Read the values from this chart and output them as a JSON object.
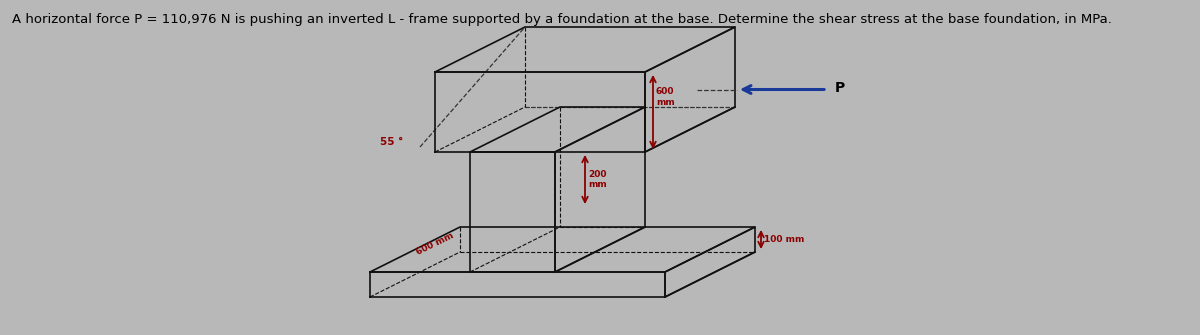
{
  "title": "A horizontal force P = 110,976 N is pushing an inverted L - frame supported by a foundation at the base. Determine the shear stress at the base foundation, in MPa.",
  "title_fontsize": 9.5,
  "bg_color": "#b8b8b8",
  "line_color": "#111111",
  "dim_color": "#8b0000",
  "arrow_color": "#1a3a9a",
  "dashed_color": "#333333",
  "P_label": "P",
  "dim_600_top": "600\nmm",
  "dim_200": "200\nmm",
  "dim_55": "55 °",
  "dim_600_base": "600 mm",
  "dim_100": "100 mm"
}
